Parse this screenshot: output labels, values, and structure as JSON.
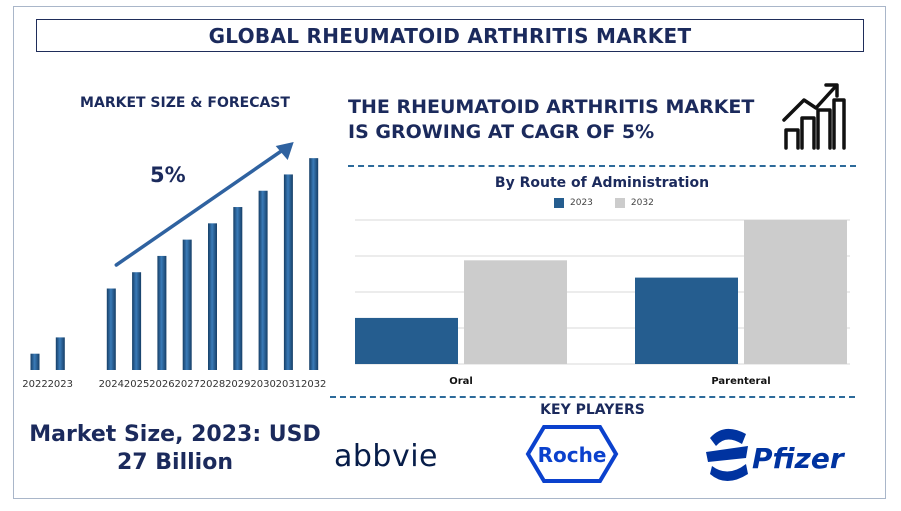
{
  "page_title": "GLOBAL RHEUMATOID ARTHRITIS MARKET",
  "left": {
    "subtitle": "MARKET SIZE & FORECAST",
    "cagr_label": "5%",
    "market_size_text": "Market Size, 2023: USD 27 Billion"
  },
  "headline": "THE RHEUMATOID ARTHRITIS MARKET IS GROWING AT CAGR OF 5%",
  "key_players": {
    "title": "KEY PLAYERS",
    "logos": [
      "abbvie",
      "Roche",
      "Pfizer"
    ]
  },
  "colors": {
    "navy": "#1b2a5c",
    "bar_blue": "#255d8f",
    "bar_grey": "#cccccc",
    "dash": "#2c6a9a"
  },
  "icons": [
    "growth-chart-icon",
    "trend-arrow-icon"
  ],
  "chart_data": [
    {
      "type": "bar",
      "title": "",
      "categories": [
        "2022",
        "2023",
        "2024",
        "2025",
        "2026",
        "2027",
        "2028",
        "2029",
        "2030",
        "2031",
        "2032"
      ],
      "values": [
        1.0,
        2.0,
        5.0,
        6.0,
        7.0,
        8.0,
        9.0,
        10.0,
        11.0,
        12.0,
        13.0
      ],
      "ylim": [
        0,
        13.5
      ],
      "gap_after_index": 1,
      "annotation": "5%",
      "grid": false
    },
    {
      "type": "bar",
      "title": "By Route of Administration",
      "categories": [
        "Oral",
        "Parenteral"
      ],
      "series": [
        {
          "name": "2023",
          "values": [
            32,
            60
          ],
          "color": "#255d8f"
        },
        {
          "name": "2032",
          "values": [
            72,
            100
          ],
          "color": "#cccccc"
        }
      ],
      "ylim": [
        0,
        100
      ],
      "grid": true,
      "legend": "top-center"
    }
  ]
}
